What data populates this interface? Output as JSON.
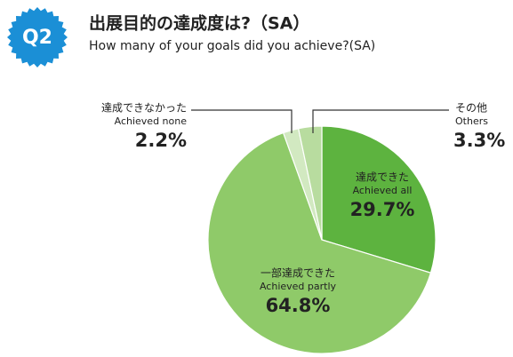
{
  "chart_data": {
    "type": "pie",
    "badge": "Q2",
    "title": "出展目的の達成度は?（SA）",
    "subtitle": "How many of your goals did you achieve?(SA)",
    "categories": [
      "達成できた",
      "一部達成できた",
      "達成できなかった",
      "その他"
    ],
    "categories_en": [
      "Achieved all",
      "Achieved partly",
      "Achieved none",
      "Others"
    ],
    "values": [
      29.7,
      64.8,
      2.2,
      3.3
    ],
    "value_labels": [
      "29.7%",
      "64.8%",
      "2.2%",
      "3.3%"
    ],
    "colors": [
      "#5db33f",
      "#8fca69",
      "#d2e9c1",
      "#b8dc9f"
    ]
  }
}
